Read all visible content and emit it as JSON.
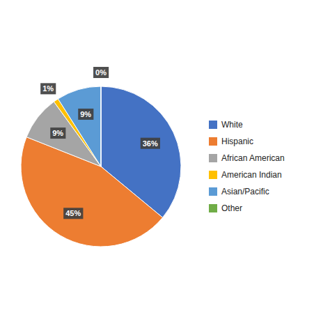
{
  "chart_data": {
    "type": "pie",
    "categories": [
      "White",
      "Hispanic",
      "African American",
      "American Indian",
      "Asian/Pacific",
      "Other"
    ],
    "values": [
      36,
      45,
      9,
      1,
      9,
      0
    ],
    "value_labels": [
      "36%",
      "45%",
      "9%",
      "1%",
      "9%",
      "0%"
    ],
    "colors": [
      "#4472C4",
      "#ED7D31",
      "#A5A5A5",
      "#FFC000",
      "#5B9BD5",
      "#70AD47"
    ],
    "data_labels": true,
    "legend": "right"
  }
}
